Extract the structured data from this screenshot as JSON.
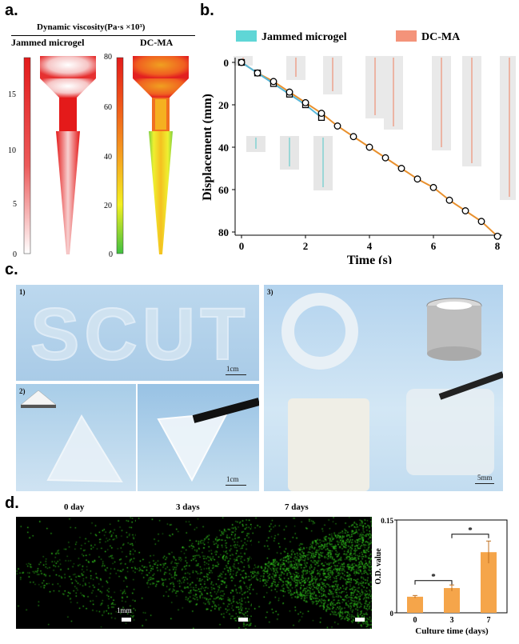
{
  "panels": {
    "a": "a.",
    "b": "b.",
    "c": "c.",
    "d": "d."
  },
  "panel_a": {
    "title": "Dynamic viscosity(Pa·s ×10³)",
    "left_label": "Jammed microgel",
    "right_label": "DC-MA",
    "left_ticks": [
      "15",
      "10",
      "5",
      "0"
    ],
    "right_ticks": [
      "80",
      "60",
      "40",
      "20",
      "0"
    ]
  },
  "chart_data": [
    {
      "type": "line",
      "panel": "b",
      "xlabel": "Time (s)",
      "ylabel": "Displacement (mm)",
      "xlim": [
        0,
        8
      ],
      "ylim": [
        0,
        80
      ],
      "y_inverted": true,
      "x_ticks": [
        "0",
        "2",
        "4",
        "6",
        "8"
      ],
      "y_ticks": [
        "0",
        "20",
        "40",
        "60",
        "80"
      ],
      "legend": [
        "Jammed microgel",
        "DC-MA"
      ],
      "legend_colors": [
        "#5fd6d6",
        "#f4937a"
      ],
      "series": [
        {
          "name": "Jammed microgel",
          "marker": "square",
          "line_color": "#56b7d9",
          "x": [
            0,
            0.5,
            1.0,
            1.5,
            2.0,
            2.5
          ],
          "y": [
            0,
            5,
            10,
            15,
            20,
            26
          ]
        },
        {
          "name": "DC-MA",
          "marker": "circle",
          "line_color": "#e8902e",
          "x": [
            0,
            0.5,
            1.0,
            1.5,
            2.0,
            2.5,
            3.0,
            3.5,
            4.0,
            4.5,
            5.0,
            5.5,
            6.0,
            6.5,
            7.0,
            7.5,
            8.0
          ],
          "y": [
            0,
            5,
            9,
            14,
            19,
            24,
            30,
            35,
            40,
            45,
            50,
            55,
            59,
            65,
            70,
            75,
            82
          ]
        }
      ]
    },
    {
      "type": "bar",
      "panel": "d",
      "categories": [
        "0",
        "3",
        "7"
      ],
      "values": [
        0.026,
        0.04,
        0.098
      ],
      "errors": [
        0.002,
        0.005,
        0.018
      ],
      "xlabel": "Culture time (days)",
      "ylabel": "O.D. value",
      "ylim": [
        0,
        0.15
      ],
      "y_ticks": [
        "0",
        "0.15"
      ],
      "significance": [
        "*",
        "*"
      ],
      "bar_color": "#f5a54a"
    }
  ],
  "panel_c": {
    "sub1": "1)",
    "sub2": "2)",
    "sub3": "3)",
    "text": "SCUT",
    "scale1": "1cm",
    "scale2": "1cm",
    "scale3": "5mm"
  },
  "panel_d": {
    "labels": [
      "0 day",
      "3 days",
      "7 days"
    ],
    "scale": "1mm"
  }
}
